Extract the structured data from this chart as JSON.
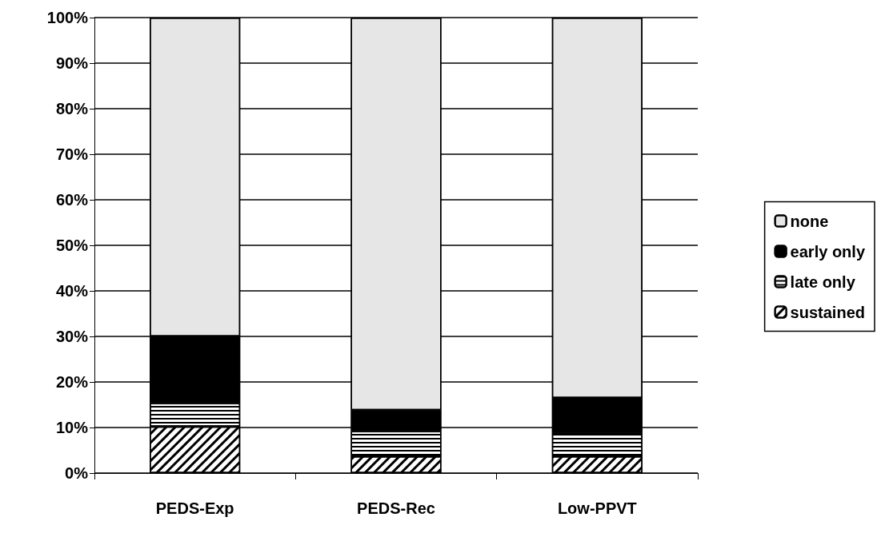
{
  "chart_data": {
    "type": "bar",
    "stacked": true,
    "categories": [
      "PEDS-Exp",
      "PEDS-Rec",
      "Low-PPVT"
    ],
    "series": [
      {
        "name": "sustained",
        "color": "#ffffff",
        "values": [
          10.2,
          3.7,
          3.7
        ]
      },
      {
        "name": "late only",
        "color": "#ffffff",
        "values": [
          5.2,
          5.5,
          5.1
        ]
      },
      {
        "name": "early only",
        "color": "#000000",
        "values": [
          14.6,
          4.6,
          7.7
        ]
      },
      {
        "name": "none",
        "color": "#e6e6e6",
        "values": [
          70.0,
          86.2,
          83.5
        ]
      }
    ],
    "ylim": [
      0,
      100
    ],
    "yticks": [
      {
        "value": 0,
        "label": "0%"
      },
      {
        "value": 10,
        "label": "10%"
      },
      {
        "value": 20,
        "label": "20%"
      },
      {
        "value": 30,
        "label": "30%"
      },
      {
        "value": 40,
        "label": "40%"
      },
      {
        "value": 50,
        "label": "50%"
      },
      {
        "value": 60,
        "label": "60%"
      },
      {
        "value": 70,
        "label": "70%"
      },
      {
        "value": 80,
        "label": "80%"
      },
      {
        "value": 90,
        "label": "90%"
      },
      {
        "value": 100,
        "label": "100%"
      }
    ],
    "grid": "y",
    "legend": "right"
  }
}
